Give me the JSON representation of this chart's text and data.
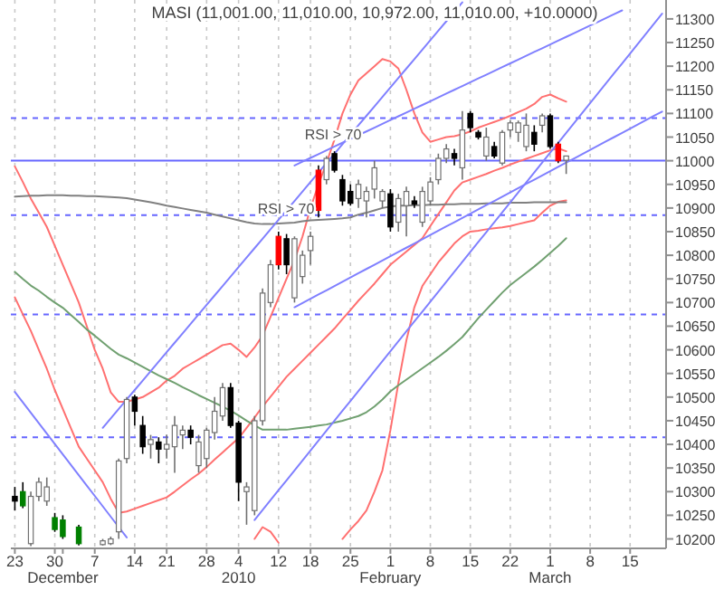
{
  "chart_data": {
    "type": "candlestick",
    "title": "MASI (11,001.00, 11,010.00, 10,972.00, 11,010.00, +10.0000)",
    "categories": [
      "23",
      null,
      null,
      null,
      null,
      "30",
      "\nDecember",
      null,
      null,
      null,
      "7",
      null,
      null,
      null,
      null,
      "14",
      null,
      null,
      null,
      "21",
      null,
      null,
      null,
      null,
      "28",
      null,
      null,
      null,
      "4\n2010",
      null,
      null,
      null,
      null,
      "12",
      null,
      null,
      null,
      "18",
      null,
      null,
      null,
      null,
      "25",
      null,
      null,
      null,
      null,
      "1\nFebruary",
      null,
      null,
      null,
      null,
      "8",
      null,
      null,
      null,
      null,
      "15",
      null,
      null,
      null,
      null,
      "22",
      null,
      null,
      null,
      null,
      "1\nMarch",
      null,
      null,
      null,
      null,
      "8",
      null,
      null,
      null,
      null,
      "15",
      null,
      null,
      null,
      null
    ],
    "ohlc": [
      [
        10290,
        10310,
        10260,
        10280
      ],
      [
        10300,
        10320,
        10265,
        10270
      ],
      [
        10190,
        10300,
        10185,
        10290
      ],
      [
        10290,
        10330,
        10280,
        10320
      ],
      [
        10280,
        10330,
        10270,
        10310
      ],
      [
        10245,
        10255,
        10215,
        10220
      ],
      [
        10240,
        10250,
        10200,
        10205
      ],
      null,
      [
        10225,
        10230,
        10186,
        10190
      ],
      null,
      null,
      [
        10188,
        10200,
        10186,
        10196
      ],
      [
        10190,
        10205,
        10187,
        10200
      ],
      [
        10215,
        10370,
        10200,
        10365
      ],
      [
        10370,
        10500,
        10360,
        10495
      ],
      [
        10500,
        10505,
        10440,
        10470
      ],
      [
        10440,
        10460,
        10380,
        10395
      ],
      [
        10400,
        10420,
        10370,
        10410
      ],
      [
        10405,
        10415,
        10360,
        10390
      ],
      [
        10390,
        10420,
        10370,
        10400
      ],
      [
        10395,
        10460,
        10340,
        10440
      ],
      [
        10420,
        10440,
        10390,
        10430
      ],
      [
        10430,
        10440,
        10400,
        10415
      ],
      [
        10355,
        10420,
        10340,
        10405
      ],
      [
        10370,
        10435,
        10350,
        10430
      ],
      [
        10425,
        10500,
        10410,
        10470
      ],
      [
        10460,
        10530,
        10450,
        10520
      ],
      [
        10520,
        10530,
        10435,
        10440
      ],
      [
        10445,
        10450,
        10280,
        10320
      ],
      [
        10300,
        10320,
        10230,
        10310
      ],
      [
        10260,
        10460,
        10250,
        10450
      ],
      [
        10450,
        10730,
        10440,
        10720
      ],
      [
        10700,
        10790,
        10690,
        10780
      ],
      [
        10780,
        10850,
        10770,
        10840
      ],
      [
        10835,
        10845,
        10760,
        10780
      ],
      [
        10710,
        10840,
        10700,
        10835
      ],
      [
        10755,
        10810,
        10740,
        10800
      ],
      [
        10810,
        10850,
        10780,
        10840
      ],
      [
        10895,
        10990,
        10880,
        10980
      ],
      [
        10960,
        11010,
        10950,
        11005
      ],
      [
        11015,
        11020,
        10975,
        10980
      ],
      [
        10960,
        10970,
        10905,
        10915
      ],
      [
        10935,
        10950,
        10905,
        10910
      ],
      [
        10920,
        10960,
        10900,
        10950
      ],
      [
        10915,
        10945,
        10880,
        10935
      ],
      [
        10940,
        11000,
        10920,
        10985
      ],
      [
        10915,
        10940,
        10900,
        10935
      ],
      [
        10930,
        10940,
        10850,
        10860
      ],
      [
        10870,
        10930,
        10850,
        10920
      ],
      [
        10905,
        10945,
        10840,
        10935
      ],
      [
        10915,
        10925,
        10900,
        10908
      ],
      [
        10870,
        10945,
        10860,
        10935
      ],
      [
        10915,
        10965,
        10905,
        10955
      ],
      [
        10960,
        11015,
        10950,
        11005
      ],
      [
        11005,
        11035,
        10995,
        11025
      ],
      [
        11015,
        11025,
        10990,
        11005
      ],
      [
        10985,
        11105,
        10960,
        11065
      ],
      [
        11100,
        11105,
        11060,
        11070
      ],
      [
        11060,
        11065,
        11045,
        11050
      ],
      [
        11010,
        11070,
        11000,
        11050
      ],
      [
        11030,
        11040,
        11005,
        11010
      ],
      [
        10995,
        11065,
        10990,
        11060
      ],
      [
        11065,
        11085,
        11050,
        11080
      ],
      [
        11060,
        11085,
        11040,
        11080
      ],
      [
        11030,
        11100,
        11020,
        11075
      ],
      [
        11060,
        11075,
        11020,
        11035
      ],
      [
        11075,
        11100,
        11060,
        11095
      ],
      [
        11095,
        11100,
        11025,
        11030
      ],
      [
        11035,
        11040,
        10995,
        11000
      ],
      [
        11001,
        11010,
        10972,
        11010
      ],
      null,
      null,
      null,
      null,
      null,
      null,
      null,
      null,
      null,
      null,
      null,
      null
    ],
    "colors": [
      "#000000",
      "#008000",
      "#ffffff",
      "#ffffff",
      "#ffffff",
      "#008000",
      "#008000",
      null,
      "#008000",
      null,
      null,
      "#ffffff",
      "#ffffff",
      "#ffffff",
      "#ffffff",
      "#000000",
      "#000000",
      "#ffffff",
      "#000000",
      "#ffffff",
      "#ffffff",
      "#ffffff",
      "#000000",
      "#ffffff",
      "#ffffff",
      "#ffffff",
      "#ffffff",
      "#000000",
      "#000000",
      "#ffffff",
      "#ffffff",
      "#ffffff",
      "#ffffff",
      "#ff0000",
      "#000000",
      "#ffffff",
      "#ffffff",
      "#ffffff",
      "#ff0000",
      "#ffffff",
      "#000000",
      "#000000",
      "#000000",
      "#ffffff",
      "#ffffff",
      "#ffffff",
      "#ffffff",
      "#000000",
      "#ffffff",
      "#ffffff",
      "#000000",
      "#ffffff",
      "#ffffff",
      "#ffffff",
      "#ffffff",
      "#000000",
      "#ffffff",
      "#000000",
      "#000000",
      "#ffffff",
      "#000000",
      "#ffffff",
      "#ffffff",
      "#ffffff",
      "#ffffff",
      "#000000",
      "#ffffff",
      "#000000",
      "#ff0000",
      "#ffffff",
      null,
      null,
      null,
      null,
      null,
      null,
      null,
      null,
      null,
      null,
      null,
      null
    ],
    "ylim": [
      10180,
      11340
    ],
    "yticks": [
      10200,
      10250,
      10300,
      10350,
      10400,
      10450,
      10500,
      10550,
      10600,
      10650,
      10700,
      10750,
      10800,
      10850,
      10900,
      10950,
      11000,
      11050,
      11100,
      11150,
      11200,
      11250,
      11300
    ],
    "grid": "x",
    "series": [
      {
        "type": "line",
        "color": "#ff7070",
        "values": [
          10988,
          10955,
          10920,
          10890,
          10860,
          10820,
          10780,
          10740,
          10700,
          10650,
          10600,
          10560,
          10510,
          10490,
          10490,
          10495,
          10500,
          10510,
          10520,
          10535,
          10545,
          10560,
          10570,
          10580,
          10590,
          10600,
          10610,
          10613,
          10600,
          10585,
          10605,
          10630,
          10670,
          10710,
          10750,
          10790,
          10840,
          10900,
          10950,
          10995,
          11045,
          11100,
          11140,
          11170,
          11185,
          11200,
          11215,
          11210,
          11195,
          11150,
          11100,
          11060,
          11040,
          11045,
          11050,
          11052,
          11056,
          11062,
          11070,
          11076,
          11082,
          11088,
          11095,
          11103,
          11110,
          11120,
          11135,
          11140,
          11132,
          11125,
          null,
          null,
          null,
          null,
          null,
          null,
          null,
          null,
          null,
          null,
          null,
          null
        ]
      },
      {
        "type": "line",
        "color": "#ff7070",
        "values": [
          10711,
          10675,
          10640,
          10600,
          10560,
          10515,
          10475,
          10435,
          10395,
          10370,
          10345,
          10320,
          10285,
          10255,
          10258,
          10264,
          10270,
          10276,
          10282,
          10288,
          10300,
          10313,
          10326,
          10338,
          10352,
          10368,
          10383,
          10398,
          10413,
          10435,
          10457,
          10480,
          10501,
          10522,
          10543,
          10560,
          10577,
          10594,
          10611,
          10628,
          10645,
          10665,
          10684,
          10704,
          10722,
          10740,
          10760,
          10780,
          10794,
          10808,
          10822,
          10836,
          10862,
          10887,
          10912,
          10937,
          10954,
          10960,
          10966,
          10972,
          10979,
          10985,
          10992,
          10998,
          11004,
          11010,
          11016,
          11022,
          11026,
          11020,
          null,
          null,
          null,
          null,
          null,
          null,
          null,
          null,
          null,
          null,
          null,
          null
        ]
      },
      {
        "type": "line",
        "color": "#ff7070",
        "values": [
          null,
          null,
          null,
          null,
          null,
          null,
          null,
          null,
          null,
          null,
          null,
          null,
          null,
          null,
          null,
          null,
          null,
          null,
          null,
          null,
          null,
          null,
          null,
          null,
          null,
          null,
          null,
          null,
          null,
          null,
          10200,
          10225,
          10215,
          10192,
          null,
          null,
          null,
          null,
          null,
          null,
          null,
          10200,
          10220,
          10238,
          10260,
          10300,
          10345,
          10430,
          10530,
          10620,
          10690,
          10735,
          10760,
          10785,
          10805,
          10825,
          10840,
          10850,
          10852,
          10855,
          10857,
          10859,
          10862,
          10866,
          10870,
          10874,
          10890,
          10905,
          10913,
          10916,
          null,
          null,
          null,
          null,
          null,
          null,
          null,
          null,
          null,
          null,
          null,
          null
        ]
      },
      {
        "type": "line",
        "color": "#808080",
        "values": [
          10924,
          10925,
          10926,
          10926,
          10927,
          10927,
          10927,
          10926,
          10926,
          10925,
          10925,
          10924,
          10923,
          10922,
          10921,
          10918,
          10915,
          10912,
          10909,
          10905,
          10902,
          10899,
          10896,
          10893,
          10890,
          10886,
          10882,
          10878,
          10874,
          10870,
          10867,
          10866,
          10866,
          10867,
          10868,
          10869,
          10872,
          10874,
          10875,
          10876,
          10877,
          10878,
          10880,
          10886,
          10890,
          10895,
          10900,
          10903,
          10905,
          10905,
          10906,
          10906,
          10907,
          10907,
          10908,
          10908,
          10909,
          10909,
          10909,
          10910,
          10910,
          10910,
          10911,
          10911,
          10911,
          10912,
          10912,
          10912,
          10912,
          10912,
          null,
          null,
          null,
          null,
          null,
          null,
          null,
          null,
          null,
          null,
          null,
          null
        ]
      },
      {
        "type": "line",
        "color": "#70a070",
        "values": [
          10765,
          10750,
          10736,
          10725,
          10712,
          10700,
          10689,
          10674,
          10659,
          10643,
          10630,
          10616,
          10602,
          10590,
          10582,
          10573,
          10564,
          10555,
          10546,
          10538,
          10530,
          10521,
          10513,
          10504,
          10496,
          10488,
          10480,
          10471,
          10461,
          10450,
          10440,
          10431,
          10431,
          10431,
          10431,
          10433,
          10435,
          10437,
          10440,
          10442,
          10446,
          10450,
          10455,
          10460,
          10468,
          10480,
          10495,
          10512,
          10525,
          10537,
          10549,
          10561,
          10573,
          10585,
          10598,
          10612,
          10627,
          10647,
          10667,
          10685,
          10703,
          10721,
          10737,
          10750,
          10763,
          10776,
          10790,
          10805,
          10820,
          10836,
          null,
          null,
          null,
          null,
          null,
          null,
          null,
          null,
          null,
          null,
          null,
          null
        ]
      },
      {
        "type": "line",
        "color": "#8080ff",
        "values": [
          null,
          null,
          null,
          null,
          null,
          null,
          null,
          null,
          null,
          null,
          null,
          10435,
          10455,
          10475,
          10495,
          10515,
          10535,
          10555,
          10575,
          10595,
          10615,
          10635,
          10655,
          10675,
          10695,
          10715,
          10735,
          10755,
          10775,
          10795,
          10815,
          10835,
          10855,
          10875,
          10895,
          10915,
          10935,
          10955,
          10975,
          10995,
          11015,
          11035,
          11055,
          11075,
          11095,
          11115,
          11135,
          11155,
          11175,
          11195,
          11215,
          11235,
          11255,
          11275,
          11295,
          11315,
          11335,
          null,
          null,
          null,
          null,
          null,
          null,
          null,
          null,
          null,
          null,
          null,
          null,
          null,
          null,
          null,
          null,
          null,
          null,
          null,
          null,
          null,
          null,
          null,
          null,
          null
        ]
      },
      {
        "type": "line",
        "color": "#8080ff",
        "values": [
          null,
          null,
          null,
          null,
          null,
          null,
          null,
          null,
          null,
          null,
          null,
          null,
          null,
          null,
          null,
          null,
          null,
          null,
          null,
          null,
          null,
          null,
          null,
          null,
          null,
          null,
          null,
          null,
          null,
          null,
          null,
          null,
          null,
          null,
          null,
          10990,
          10998,
          11006,
          11014,
          11022,
          11030,
          11038,
          11046,
          11054,
          11062,
          11070,
          11078,
          11086,
          11094,
          11102,
          11110,
          11118,
          11126,
          11134,
          11142,
          11150,
          11158,
          11166,
          11174,
          11182,
          11190,
          11198,
          11206,
          11214,
          11222,
          11230,
          11238,
          11246,
          11254,
          11262,
          11270,
          11278,
          11286,
          11294,
          11302,
          11310,
          11318,
          null,
          null,
          null,
          null,
          null
        ]
      },
      {
        "type": "line",
        "color": "#8080ff",
        "values": [
          null,
          null,
          null,
          null,
          null,
          null,
          null,
          null,
          null,
          null,
          null,
          null,
          null,
          null,
          null,
          null,
          null,
          null,
          null,
          null,
          null,
          null,
          null,
          null,
          null,
          null,
          null,
          null,
          null,
          null,
          null,
          null,
          null,
          null,
          null,
          10690,
          10699,
          10708,
          10717,
          10726,
          10735,
          10744,
          10753,
          10762,
          10771,
          10780,
          10789,
          10798,
          10807,
          10816,
          10825,
          10834,
          10843,
          10852,
          10861,
          10870,
          10879,
          10888,
          10897,
          10906,
          10915,
          10924,
          10933,
          10942,
          10951,
          10960,
          10969,
          10978,
          10987,
          10996,
          11005,
          11014,
          11023,
          11032,
          11041,
          11050,
          11059,
          11068,
          11077,
          11086,
          11095,
          11104
        ]
      },
      {
        "type": "line",
        "color": "#8080ff",
        "values": [
          null,
          null,
          null,
          null,
          null,
          null,
          null,
          null,
          null,
          null,
          null,
          null,
          null,
          null,
          null,
          null,
          null,
          null,
          null,
          null,
          null,
          null,
          null,
          null,
          null,
          null,
          null,
          null,
          null,
          null,
          10240,
          10261,
          10282,
          10303,
          10324,
          10345,
          10366,
          10387,
          10408,
          10429,
          10450,
          10471,
          10492,
          10513,
          10534,
          10555,
          10576,
          10597,
          10618,
          10639,
          10660,
          10681,
          10702,
          10723,
          10744,
          10765,
          10786,
          10807,
          10828,
          10849,
          10870,
          10891,
          10912,
          10933,
          10954,
          10975,
          10996,
          11017,
          11038,
          11059,
          11080,
          11101,
          11122,
          11143,
          11164,
          11185,
          11206,
          11227,
          11248,
          11269,
          11290,
          11311
        ]
      },
      {
        "type": "line",
        "color": "#8080ff",
        "values": [
          10511,
          10489,
          10467,
          10445,
          10423,
          10401,
          10379,
          10357,
          10335,
          10313,
          10291,
          10269,
          10247,
          10225,
          10203,
          null,
          null,
          null,
          null,
          null,
          null,
          null,
          null,
          null,
          null,
          null,
          null,
          null,
          null,
          null,
          null,
          null,
          null,
          null,
          null,
          null,
          null,
          null,
          null,
          null,
          null,
          null,
          null,
          null,
          null,
          null,
          null,
          null,
          null,
          null,
          null,
          null,
          null,
          null,
          null,
          null,
          null,
          null,
          null,
          null,
          null,
          null,
          null,
          null,
          null,
          null,
          null,
          null,
          null,
          null,
          null,
          null,
          null,
          null,
          null,
          null,
          null,
          null,
          null,
          null,
          null,
          null
        ]
      }
    ],
    "ref_lines": [
      {
        "axis": "y",
        "value": 11090,
        "color": "#6666ff",
        "line_style": "dashed"
      },
      {
        "axis": "y",
        "value": 11000,
        "color": "#6666ff",
        "line_style": "solid"
      },
      {
        "axis": "y",
        "value": 10885,
        "color": "#6666ff",
        "line_style": "dashed"
      },
      {
        "axis": "y",
        "value": 10675,
        "color": "#6666ff",
        "line_style": "dashed"
      },
      {
        "axis": "y",
        "value": 10415,
        "color": "#6666ff",
        "line_style": "dashed"
      }
    ],
    "annotations": [
      "RSI > 70",
      "RSI > 70"
    ]
  }
}
